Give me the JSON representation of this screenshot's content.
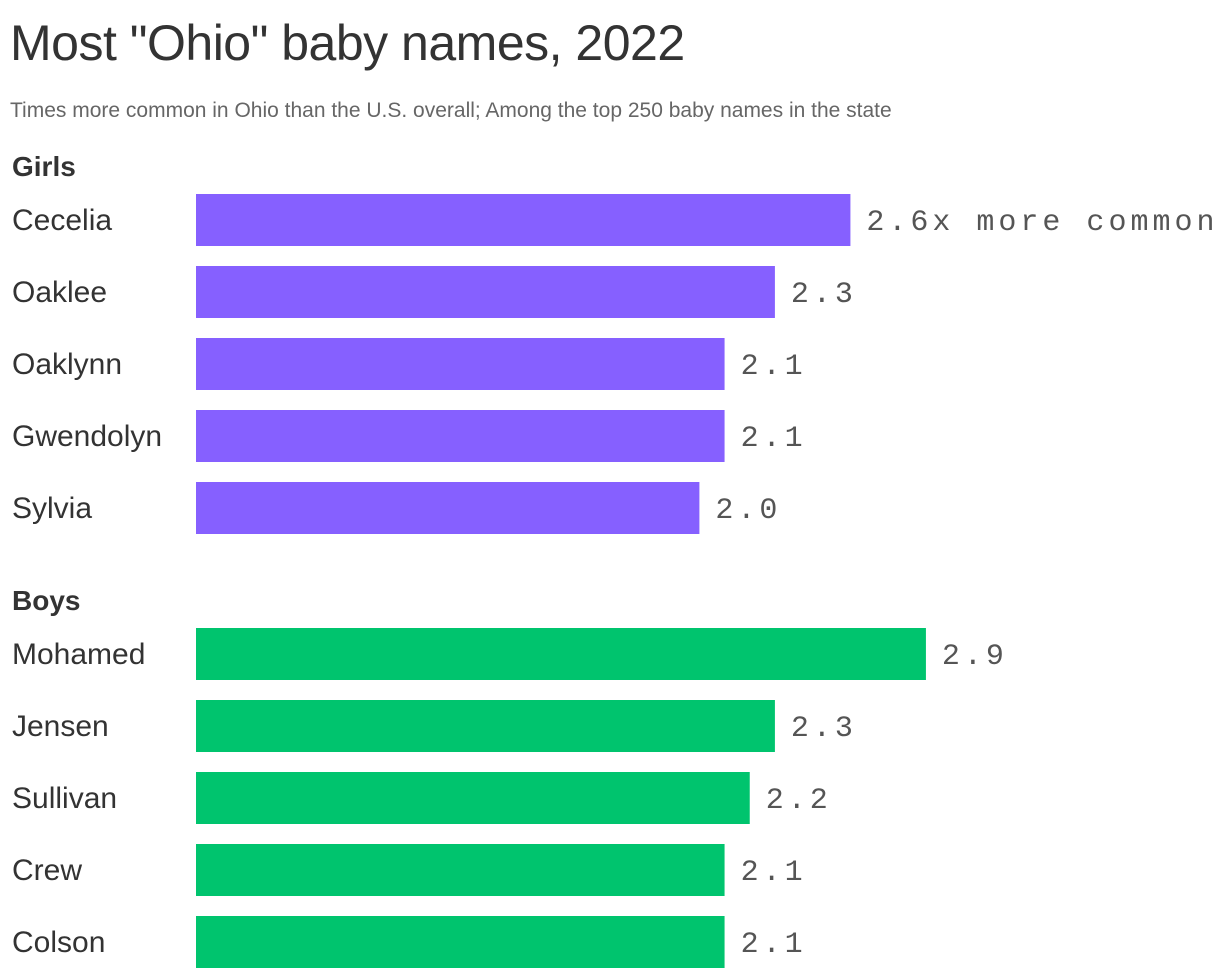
{
  "title": "Most \"Ohio\" baby names, 2022",
  "subtitle": "Times more common in Ohio than the U.S. overall; Among the top 250 baby names in the state",
  "chart_data": {
    "type": "bar",
    "orientation": "horizontal",
    "value_suffix_first": "x more common",
    "xlim": [
      0,
      2.9
    ],
    "grid": false,
    "groups": [
      {
        "label": "Girls",
        "color": "#8660ff",
        "categories": [
          "Cecelia",
          "Oaklee",
          "Oaklynn",
          "Gwendolyn",
          "Sylvia"
        ],
        "values": [
          2.6,
          2.3,
          2.1,
          2.1,
          2.0
        ],
        "value_labels": [
          "2.6x more common",
          "2.3",
          "2.1",
          "2.1",
          "2.0"
        ]
      },
      {
        "label": "Boys",
        "color": "#00c46e",
        "categories": [
          "Mohamed",
          "Jensen",
          "Sullivan",
          "Crew",
          "Colson"
        ],
        "values": [
          2.9,
          2.3,
          2.2,
          2.1,
          2.1
        ],
        "value_labels": [
          "2.9",
          "2.3",
          "2.2",
          "2.1",
          "2.1"
        ]
      }
    ]
  }
}
